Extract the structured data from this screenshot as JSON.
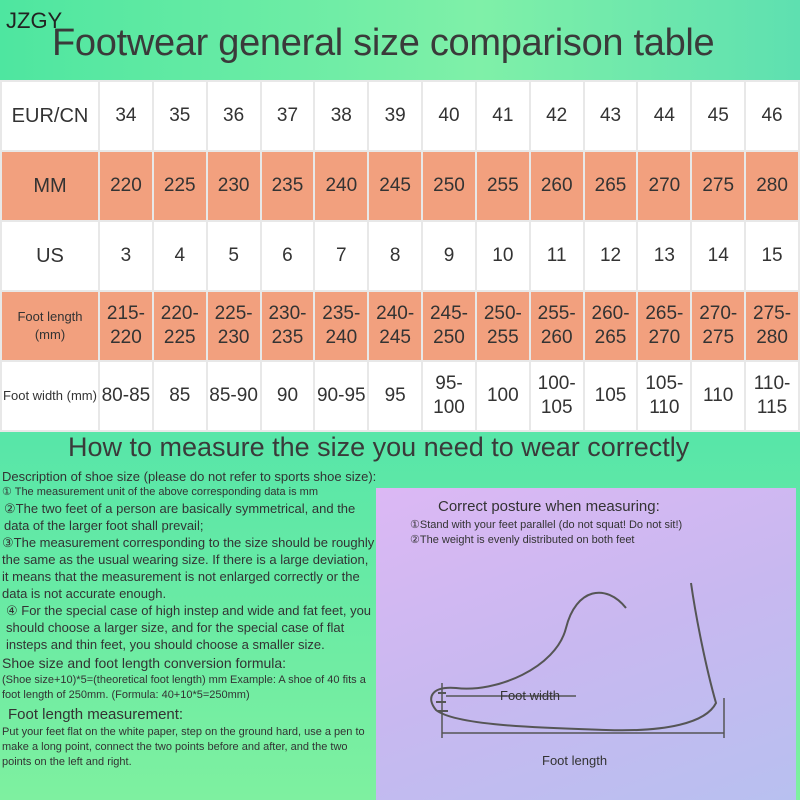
{
  "brand": "JZGY",
  "title": "Footwear general size comparison table",
  "table": {
    "rows": [
      {
        "label": "EUR/CN",
        "style": "w",
        "values": [
          "34",
          "35",
          "36",
          "37",
          "38",
          "39",
          "40",
          "41",
          "42",
          "43",
          "44",
          "45",
          "46"
        ]
      },
      {
        "label": "MM",
        "style": "s",
        "values": [
          "220",
          "225",
          "230",
          "235",
          "240",
          "245",
          "250",
          "255",
          "260",
          "265",
          "270",
          "275",
          "280"
        ]
      },
      {
        "label": "US",
        "style": "w",
        "values": [
          "3",
          "4",
          "5",
          "6",
          "7",
          "8",
          "9",
          "10",
          "11",
          "12",
          "13",
          "14",
          "15"
        ]
      },
      {
        "label": "Foot length (mm)",
        "style": "s",
        "small": true,
        "values": [
          "215-220",
          "220-225",
          "225-230",
          "230-235",
          "235-240",
          "240-245",
          "245-250",
          "250-255",
          "255-260",
          "260-265",
          "265-270",
          "270-275",
          "275-280"
        ]
      },
      {
        "label": "Foot width (mm)",
        "style": "w",
        "small": true,
        "values": [
          "80-85",
          "85",
          "85-90",
          "90",
          "90-95",
          "95",
          "95-100",
          "100",
          "100-105",
          "105",
          "105-110",
          "110",
          "110-115"
        ]
      }
    ]
  },
  "howto_title": "How to measure the size you need to wear correctly",
  "description": {
    "heading": "Description of shoe size (please do not refer to sports shoe size):",
    "item1": "① The measurement unit of the above corresponding data is mm",
    "item2": "②The two feet of a person are basically symmetrical, and the data of the larger foot shall prevail;",
    "item3": "③The measurement corresponding to the size should be roughly the same as the usual wearing size. If there is a large deviation, it means that the measurement is not enlarged correctly or the data is not accurate enough.",
    "item4": "④ For the special case of high instep and wide and fat feet, you should choose a larger size, and for the special case of flat insteps and thin feet, you should choose a smaller size.",
    "formula_heading": "Shoe size and foot length conversion formula:",
    "formula": "(Shoe size+10)*5=(theoretical foot length) mm Example: A shoe of 40 fits a foot length of 250mm. (Formula: 40+10*5=250mm)",
    "measure_heading": "Foot length measurement:",
    "measure": "Put your feet flat on the white paper, step on the ground hard, use a pen to make a long point, connect the two points before and after, and the two points on the left and right."
  },
  "posture": {
    "title": "Correct posture when measuring:",
    "item1": "①Stand with your feet parallel (do not squat! Do not sit!)",
    "item2": "②The weight is evenly distributed on both feet",
    "foot_width": "Foot width",
    "foot_length": "Foot length"
  }
}
